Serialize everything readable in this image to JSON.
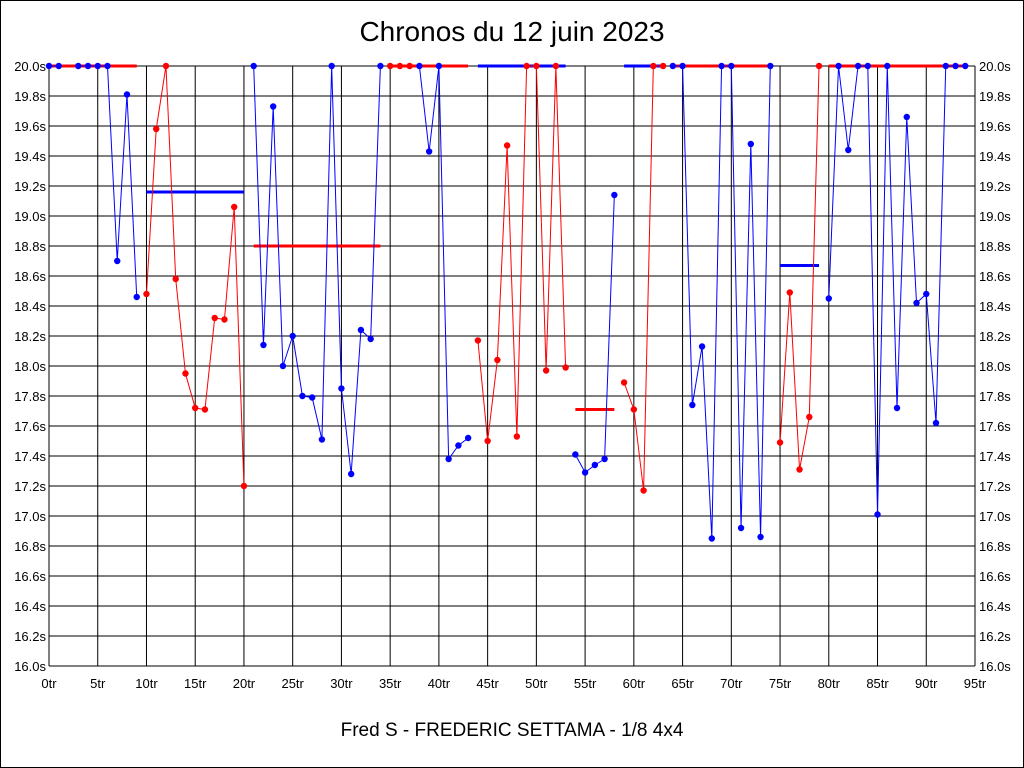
{
  "chart_data": {
    "type": "line",
    "title": "Chronos du 12 juin 2023",
    "footer": "Fred S - FREDERIC SETTAMA - 1/8 4x4",
    "xlim": [
      0,
      95
    ],
    "ylim": [
      16.0,
      20.0
    ],
    "grid": true,
    "x_tick_labels": [
      "0tr",
      "5tr",
      "10tr",
      "15tr",
      "20tr",
      "25tr",
      "30tr",
      "35tr",
      "40tr",
      "45tr",
      "50tr",
      "55tr",
      "60tr",
      "65tr",
      "70tr",
      "75tr",
      "80tr",
      "85tr",
      "90tr",
      "95tr"
    ],
    "y_tick_labels": [
      "16.0s",
      "16.2s",
      "16.4s",
      "16.6s",
      "16.8s",
      "17.0s",
      "17.2s",
      "17.4s",
      "17.6s",
      "17.8s",
      "18.0s",
      "18.2s",
      "18.4s",
      "18.6s",
      "18.8s",
      "19.0s",
      "19.2s",
      "19.4s",
      "19.6s",
      "19.8s",
      "20.0s"
    ],
    "colors": {
      "blue": "#0000ff",
      "red": "#ff0000",
      "grid": "#000000"
    },
    "series": [
      {
        "color": "blue",
        "points": [
          [
            0,
            20.0
          ],
          [
            1,
            20.0
          ]
        ]
      },
      {
        "color": "blue",
        "points": [
          [
            3,
            20.0
          ],
          [
            4,
            20.0
          ],
          [
            5,
            20.0
          ],
          [
            6,
            20.0
          ],
          [
            7,
            18.7
          ],
          [
            8,
            19.81
          ],
          [
            9,
            18.46
          ]
        ]
      },
      {
        "color": "red",
        "points": [
          [
            10,
            18.48
          ],
          [
            11,
            19.58
          ],
          [
            12,
            20.0
          ],
          [
            13,
            18.58
          ],
          [
            14,
            17.95
          ],
          [
            15,
            17.72
          ],
          [
            16,
            17.71
          ],
          [
            17,
            18.32
          ],
          [
            18,
            18.31
          ],
          [
            19,
            19.06
          ],
          [
            20,
            17.2
          ]
        ]
      },
      {
        "color": "blue",
        "points": [
          [
            21,
            20.0
          ],
          [
            22,
            18.14
          ],
          [
            23,
            19.73
          ],
          [
            24,
            18.0
          ],
          [
            25,
            18.2
          ],
          [
            26,
            17.8
          ],
          [
            27,
            17.79
          ],
          [
            28,
            17.51
          ],
          [
            29,
            20.0
          ],
          [
            30,
            17.85
          ],
          [
            31,
            17.28
          ],
          [
            32,
            18.24
          ],
          [
            33,
            18.18
          ],
          [
            34,
            20.0
          ]
        ]
      },
      {
        "color": "red",
        "points": [
          [
            35,
            20.0
          ],
          [
            36,
            20.0
          ],
          [
            37,
            20.0
          ]
        ]
      },
      {
        "color": "blue",
        "points": [
          [
            38,
            20.0
          ],
          [
            39,
            19.43
          ],
          [
            40,
            20.0
          ],
          [
            41,
            17.38
          ],
          [
            42,
            17.47
          ],
          [
            43,
            17.52
          ]
        ]
      },
      {
        "color": "red",
        "points": [
          [
            44,
            18.17
          ],
          [
            45,
            17.5
          ],
          [
            46,
            18.04
          ],
          [
            47,
            19.47
          ],
          [
            48,
            17.53
          ],
          [
            49,
            20.0
          ],
          [
            50,
            20.0
          ],
          [
            51,
            17.97
          ],
          [
            52,
            20.0
          ],
          [
            53,
            17.99
          ]
        ]
      },
      {
        "color": "blue",
        "points": [
          [
            54,
            17.41
          ],
          [
            55,
            17.29
          ],
          [
            56,
            17.34
          ],
          [
            57,
            17.38
          ],
          [
            58,
            19.14
          ]
        ]
      },
      {
        "color": "red",
        "points": [
          [
            59,
            17.89
          ],
          [
            60,
            17.71
          ],
          [
            61,
            17.17
          ],
          [
            62,
            20.0
          ],
          [
            63,
            20.0
          ]
        ]
      },
      {
        "color": "blue",
        "points": [
          [
            64,
            20.0
          ],
          [
            65,
            20.0
          ],
          [
            66,
            17.74
          ],
          [
            67,
            18.13
          ],
          [
            68,
            16.85
          ],
          [
            69,
            20.0
          ],
          [
            70,
            20.0
          ],
          [
            71,
            16.92
          ],
          [
            72,
            19.48
          ],
          [
            73,
            16.86
          ],
          [
            74,
            20.0
          ]
        ]
      },
      {
        "color": "red",
        "points": [
          [
            75,
            17.49
          ],
          [
            76,
            18.49
          ],
          [
            77,
            17.31
          ],
          [
            78,
            17.66
          ],
          [
            79,
            20.0
          ]
        ]
      },
      {
        "color": "blue",
        "points": [
          [
            80,
            18.45
          ],
          [
            81,
            20.0
          ],
          [
            82,
            19.44
          ],
          [
            83,
            20.0
          ],
          [
            84,
            20.0
          ],
          [
            85,
            17.01
          ],
          [
            86,
            20.0
          ],
          [
            87,
            17.72
          ],
          [
            88,
            19.66
          ],
          [
            89,
            18.42
          ],
          [
            90,
            18.48
          ],
          [
            91,
            17.62
          ],
          [
            92,
            20.0
          ],
          [
            93,
            20.0
          ],
          [
            94,
            20.0
          ]
        ]
      }
    ],
    "averages": [
      {
        "color": "red",
        "x_start": 0,
        "x_end": 9,
        "value": 20.0
      },
      {
        "color": "blue",
        "x_start": 10,
        "x_end": 20,
        "value": 19.16
      },
      {
        "color": "red",
        "x_start": 21,
        "x_end": 34,
        "value": 18.8
      },
      {
        "color": "red",
        "x_start": 35,
        "x_end": 43,
        "value": 20.0
      },
      {
        "color": "blue",
        "x_start": 44,
        "x_end": 53,
        "value": 20.0
      },
      {
        "color": "red",
        "x_start": 54,
        "x_end": 58,
        "value": 17.71
      },
      {
        "color": "blue",
        "x_start": 59,
        "x_end": 63,
        "value": 20.0
      },
      {
        "color": "red",
        "x_start": 64,
        "x_end": 74,
        "value": 20.0
      },
      {
        "color": "blue",
        "x_start": 75,
        "x_end": 79,
        "value": 18.67
      },
      {
        "color": "red",
        "x_start": 80,
        "x_end": 94,
        "value": 20.0
      }
    ]
  }
}
